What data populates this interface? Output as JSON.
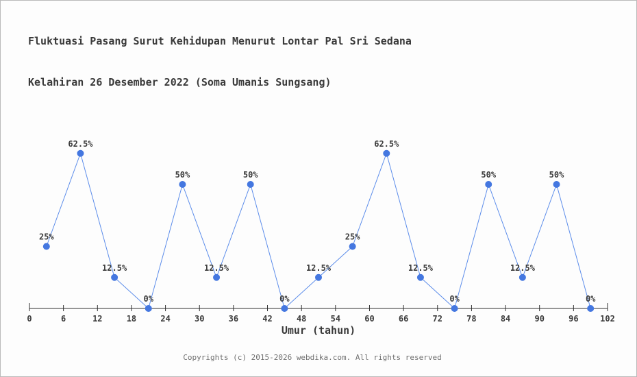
{
  "window": {
    "background": "#fdfdfd",
    "border_color": "#b9b9b9"
  },
  "title": {
    "line1": "Fluktuasi Pasang Surut Kehidupan Menurut Lontar Pal Sri Sedana",
    "line2": "Kelahiran 26 Desember 2022 (Soma Umanis Sungsang)"
  },
  "footer": {
    "text": "Copyrights (c) 2015-2026 webdika.com. All rights reserved"
  },
  "chart_data": {
    "type": "line",
    "title": "Fluktuasi Pasang Surut Kehidupan Menurut Lontar Pal Sri Sedana Kelahiran 26 Desember 2022 (Soma Umanis Sungsang)",
    "xlabel": "Umur (tahun)",
    "ylabel": "",
    "x": [
      3,
      9,
      15,
      21,
      27,
      33,
      39,
      45,
      51,
      57,
      63,
      69,
      75,
      81,
      87,
      93,
      99
    ],
    "values": [
      25,
      62.5,
      12.5,
      0,
      50,
      12.5,
      50,
      0,
      12.5,
      25,
      62.5,
      12.5,
      0,
      50,
      12.5,
      50,
      0
    ],
    "point_labels": [
      "25%",
      "62.5%",
      "12.5%",
      "0%",
      "50%",
      "12.5%",
      "50%",
      "0%",
      "12.5%",
      "25%",
      "62.5%",
      "12.5%",
      "0%",
      "50%",
      "12.5%",
      "50%",
      "0%"
    ],
    "x_ticks": [
      0,
      6,
      12,
      18,
      24,
      30,
      36,
      42,
      48,
      54,
      60,
      66,
      72,
      78,
      84,
      90,
      96,
      102
    ],
    "xlim": [
      0,
      102
    ],
    "ylim": [
      0,
      100
    ],
    "grid": false,
    "legend": null,
    "colors": {
      "line": "#5b8cea",
      "marker": "#4477e0",
      "point_label": "#3b3b3b",
      "axis": "#2f2f2f",
      "tick_label": "#3b3b3b"
    }
  }
}
